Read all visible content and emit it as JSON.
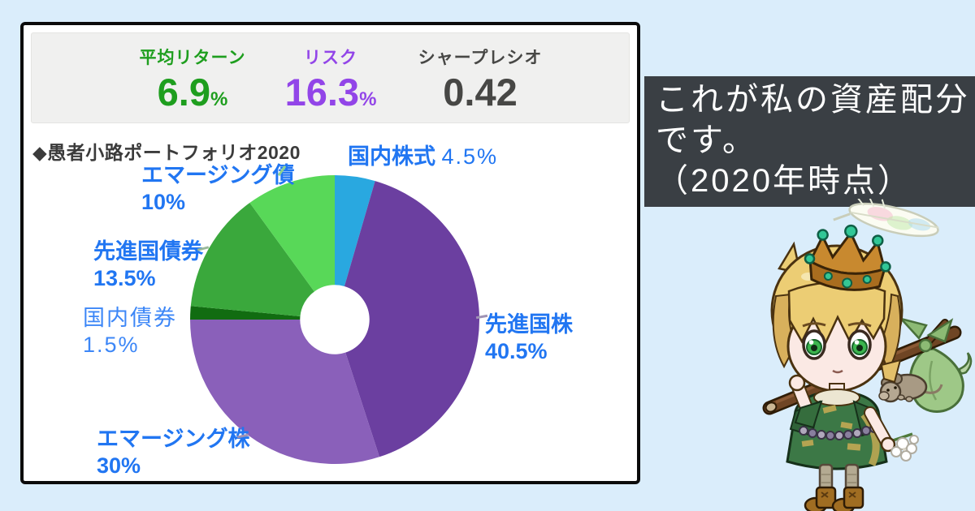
{
  "page": {
    "background": "#daedfb"
  },
  "stats": {
    "avg_return": {
      "label": "平均リターン",
      "value": "6.9",
      "unit": "%",
      "color": "#1e9e1e"
    },
    "risk": {
      "label": "リスク",
      "value": "16.3",
      "unit": "%",
      "color": "#9245e8"
    },
    "sharpe": {
      "label": "シャープレシオ",
      "value": "0.42",
      "unit": "",
      "color": "#474745"
    }
  },
  "chart_data": {
    "type": "pie",
    "title": "◆愚者小路ポートフォリオ2020",
    "style": "donut",
    "donut_hole_ratio": 0.24,
    "start_angle_deg": 0,
    "direction": "clockwise",
    "label_color": "#2176f2",
    "slices": [
      {
        "label": "国内株式",
        "pct_text": "4.5%",
        "value": 4.5,
        "color": "#29a8e0"
      },
      {
        "label": "先進国株",
        "pct_text": "40.5%",
        "value": 40.5,
        "color": "#6b3fa0"
      },
      {
        "label": "エマージング株",
        "pct_text": "30%",
        "value": 30,
        "color": "#8a60ba"
      },
      {
        "label": "国内債券",
        "pct_text": "1.5%",
        "value": 1.5,
        "color": "#116c11"
      },
      {
        "label": "先進国債券",
        "pct_text": "13.5%",
        "value": 13.5,
        "color": "#3aa83c"
      },
      {
        "label": "エマージング債",
        "pct_text": "10%",
        "value": 10,
        "color": "#58d858"
      }
    ]
  },
  "speech": {
    "lines": [
      "これが私の資産配分",
      "です。",
      "（2020年時点）"
    ],
    "bg": "#3a3f44",
    "text_color": "#ffffff"
  },
  "mascot": {
    "name": "crowned-adventurer-mascot"
  }
}
